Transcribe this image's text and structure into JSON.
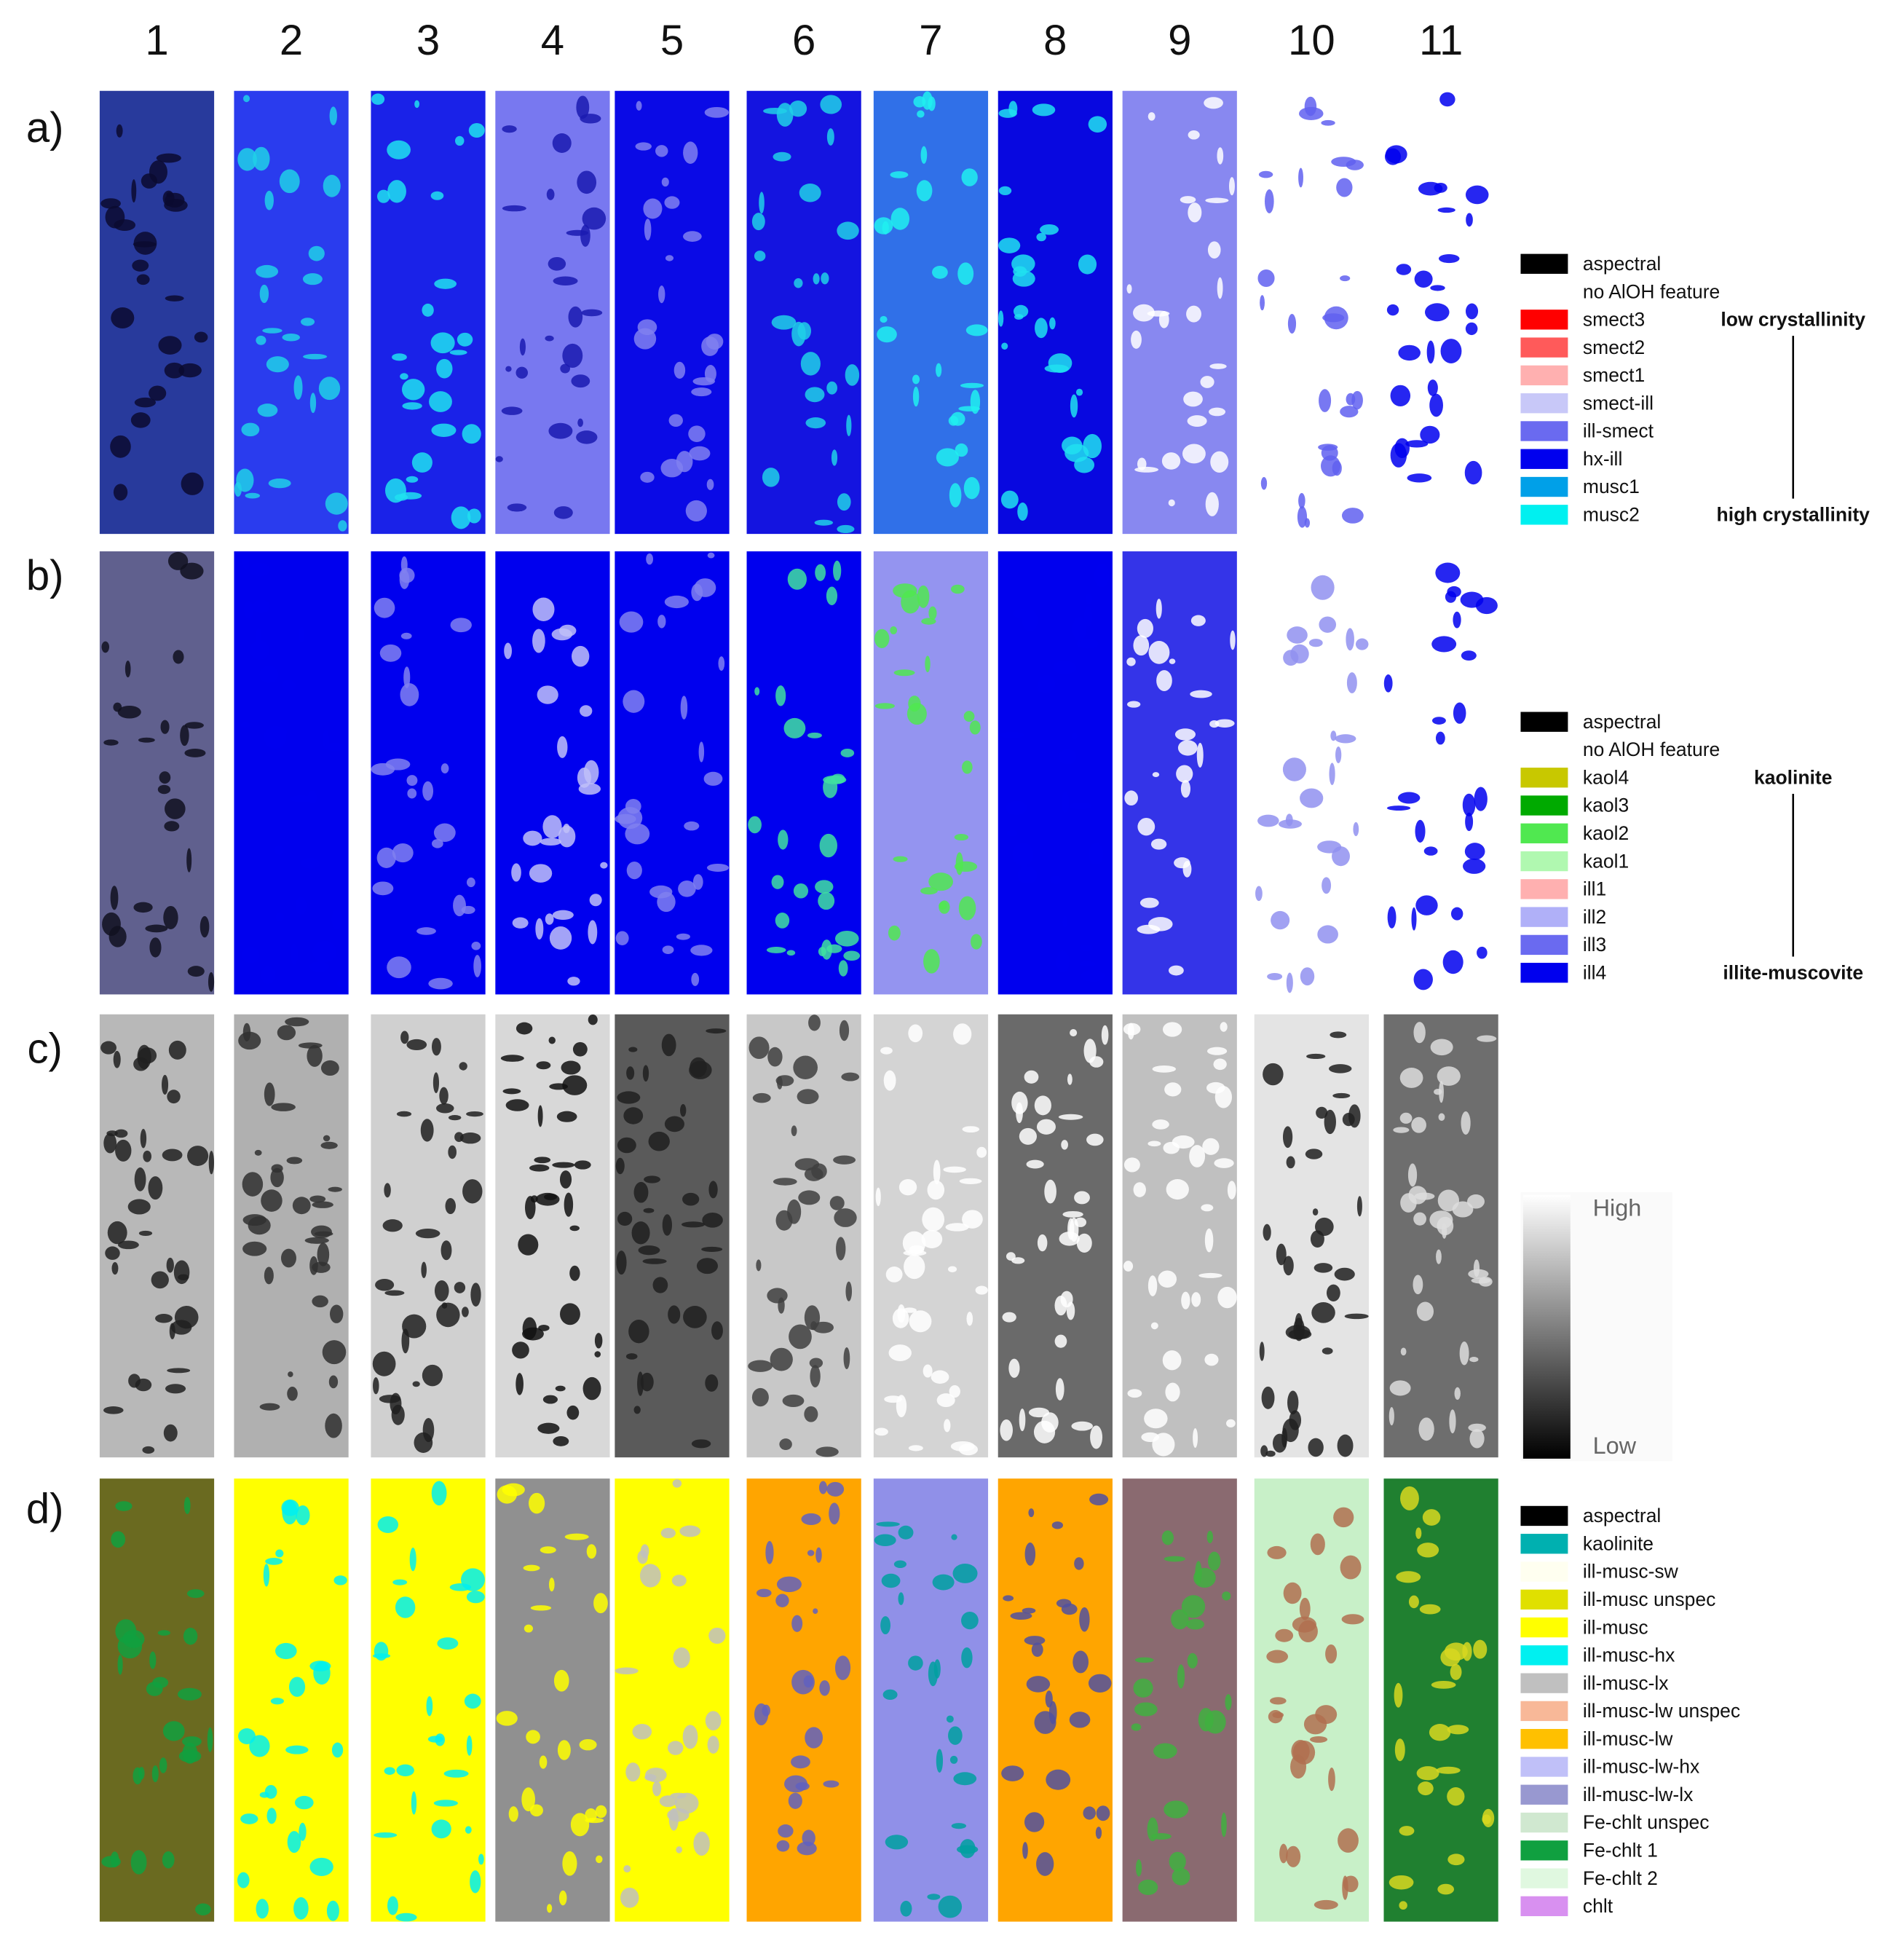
{
  "columns": [
    "1",
    "2",
    "3",
    "4",
    "5",
    "6",
    "7",
    "8",
    "9",
    "10",
    "11"
  ],
  "rows": [
    {
      "label": "a)",
      "legend": [
        {
          "name": "aspectral",
          "color": "#000000"
        },
        {
          "name": "no AlOH feature",
          "color": "#ffffff"
        },
        {
          "name": "smect3",
          "color": "#ff0000"
        },
        {
          "name": "smect2",
          "color": "#ff5a5a"
        },
        {
          "name": "smect1",
          "color": "#ffb0b0"
        },
        {
          "name": "smect-ill",
          "color": "#c8c8f8"
        },
        {
          "name": "ill-smect",
          "color": "#6a6af0"
        },
        {
          "name": "hx-ill",
          "color": "#0000ee"
        },
        {
          "name": "musc1",
          "color": "#00a0e8"
        },
        {
          "name": "musc2",
          "color": "#00f0f0"
        }
      ],
      "annotation_top": "low crystallinity",
      "annotation_bottom": "high crystallinity"
    },
    {
      "label": "b)",
      "legend": [
        {
          "name": "aspectral",
          "color": "#000000"
        },
        {
          "name": "no AlOH feature",
          "color": "#ffffff"
        },
        {
          "name": "kaol4",
          "color": "#c8c800"
        },
        {
          "name": "kaol3",
          "color": "#00aa00"
        },
        {
          "name": "kaol2",
          "color": "#50e850"
        },
        {
          "name": "kaol1",
          "color": "#b0f8b0"
        },
        {
          "name": "ill1",
          "color": "#ffb0b0"
        },
        {
          "name": "ill2",
          "color": "#b0b0f8"
        },
        {
          "name": "ill3",
          "color": "#6a6af0"
        },
        {
          "name": "ill4",
          "color": "#0000ee"
        }
      ],
      "annotation_top": "kaolinite",
      "annotation_bottom": "illite-muscovite"
    },
    {
      "label": "c)",
      "scale_high": "High",
      "scale_low": "Low"
    },
    {
      "label": "d)",
      "legend": [
        {
          "name": "aspectral",
          "color": "#000000"
        },
        {
          "name": "kaolinite",
          "color": "#00b0b0"
        },
        {
          "name": "ill-musc-sw",
          "color": "#fffff0"
        },
        {
          "name": "ill-musc unspec",
          "color": "#e0e000"
        },
        {
          "name": "ill-musc",
          "color": "#ffff00"
        },
        {
          "name": "ill-musc-hx",
          "color": "#00f0f0"
        },
        {
          "name": "ill-musc-lx",
          "color": "#c0c0c0"
        },
        {
          "name": "ill-musc-lw unspec",
          "color": "#f8b898"
        },
        {
          "name": "ill-musc-lw",
          "color": "#ffc000"
        },
        {
          "name": "ill-musc-lw-hx",
          "color": "#c0c0f8"
        },
        {
          "name": "ill-musc-lw-lx",
          "color": "#9898d0"
        },
        {
          "name": "Fe-chlt unspec",
          "color": "#d0e8d0"
        },
        {
          "name": "Fe-chlt 1",
          "color": "#10a040"
        },
        {
          "name": "Fe-chlt 2",
          "color": "#e0f8e0"
        },
        {
          "name": "chlt",
          "color": "#d890f0"
        }
      ]
    }
  ]
}
